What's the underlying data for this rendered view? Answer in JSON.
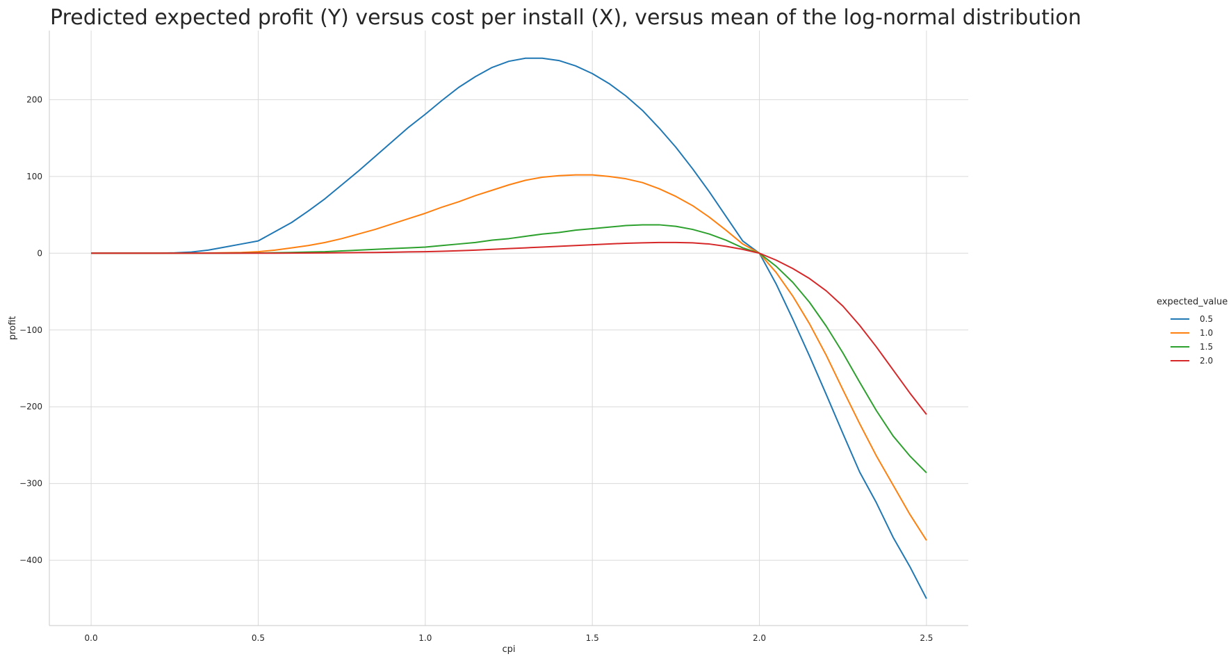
{
  "chart_data": {
    "type": "line",
    "title": "Predicted expected profit (Y) versus cost per install (X), versus mean of the log-normal distribution",
    "xlabel": "cpi",
    "ylabel": "profit",
    "xlim": [
      -0.125,
      2.625
    ],
    "ylim": [
      -485,
      290
    ],
    "xticks": [
      "0.0",
      "0.5",
      "1.0",
      "1.5",
      "2.0",
      "2.5"
    ],
    "xtick_values": [
      0,
      0.5,
      1.0,
      1.5,
      2.0,
      2.5
    ],
    "yticks": [
      "200",
      "100",
      "0",
      "−100",
      "−200",
      "−300",
      "−400"
    ],
    "ytick_values": [
      200,
      100,
      0,
      -100,
      -200,
      -300,
      -400
    ],
    "grid": true,
    "legend_title": "expected_value",
    "legend_position": "right",
    "x": [
      0.0,
      0.1,
      0.2,
      0.25,
      0.3,
      0.35,
      0.4,
      0.45,
      0.5,
      0.55,
      0.6,
      0.65,
      0.7,
      0.75,
      0.8,
      0.85,
      0.9,
      0.95,
      1.0,
      1.05,
      1.1,
      1.15,
      1.2,
      1.25,
      1.3,
      1.35,
      1.4,
      1.45,
      1.5,
      1.55,
      1.6,
      1.65,
      1.7,
      1.75,
      1.8,
      1.85,
      1.9,
      1.95,
      2.0,
      2.05,
      2.1,
      2.15,
      2.2,
      2.25,
      2.3,
      2.35,
      2.4,
      2.45,
      2.5
    ],
    "series": [
      {
        "name": "0.5",
        "color": "#1f77b4",
        "values": [
          0,
          0,
          0.1,
          0.5,
          1.5,
          4,
          8,
          12,
          16,
          28,
          40,
          55,
          71,
          89,
          107,
          126,
          145,
          164,
          181,
          199,
          216,
          230,
          242,
          250,
          254,
          254,
          251,
          244,
          234,
          221,
          205,
          186,
          163,
          138,
          110,
          80,
          48,
          16,
          0,
          -40,
          -86,
          -134,
          -184,
          -235,
          -285,
          -325,
          -370,
          -408,
          -450
        ]
      },
      {
        "name": "1.0",
        "color": "#ff7f0e",
        "values": [
          0,
          0,
          0,
          0,
          0.1,
          0.3,
          0.6,
          1,
          2,
          4,
          7,
          10,
          14,
          19,
          25,
          31,
          38,
          45,
          52,
          60,
          67,
          75,
          82,
          89,
          95,
          99,
          101,
          102,
          102,
          100,
          97,
          92,
          84,
          74,
          62,
          47,
          30,
          12,
          0,
          -25,
          -56,
          -92,
          -133,
          -178,
          -222,
          -264,
          -302,
          -340,
          -374
        ]
      },
      {
        "name": "1.5",
        "color": "#2ca02c",
        "values": [
          0,
          0,
          0,
          0,
          0,
          0,
          0.1,
          0.2,
          0.3,
          0.6,
          1,
          1.5,
          2,
          3,
          4,
          5,
          6,
          7,
          8,
          10,
          12,
          14,
          17,
          19,
          22,
          25,
          27,
          30,
          32,
          34,
          36,
          37,
          37,
          35,
          31,
          25,
          17,
          7,
          0,
          -17,
          -38,
          -64,
          -95,
          -130,
          -168,
          -205,
          -238,
          -264,
          -286
        ]
      },
      {
        "name": "2.0",
        "color": "#d62728",
        "values": [
          0,
          0,
          0,
          0,
          0,
          0,
          0,
          0,
          0,
          0.1,
          0.2,
          0.3,
          0.4,
          0.6,
          0.8,
          1,
          1.3,
          1.7,
          2,
          2.6,
          3.2,
          4,
          5,
          6,
          7,
          8,
          9,
          10,
          11,
          12,
          13,
          13.5,
          14,
          14,
          13.5,
          12,
          9,
          5,
          0,
          -9,
          -20,
          -33,
          -49,
          -69,
          -94,
          -122,
          -152,
          -182,
          -210
        ]
      }
    ]
  }
}
